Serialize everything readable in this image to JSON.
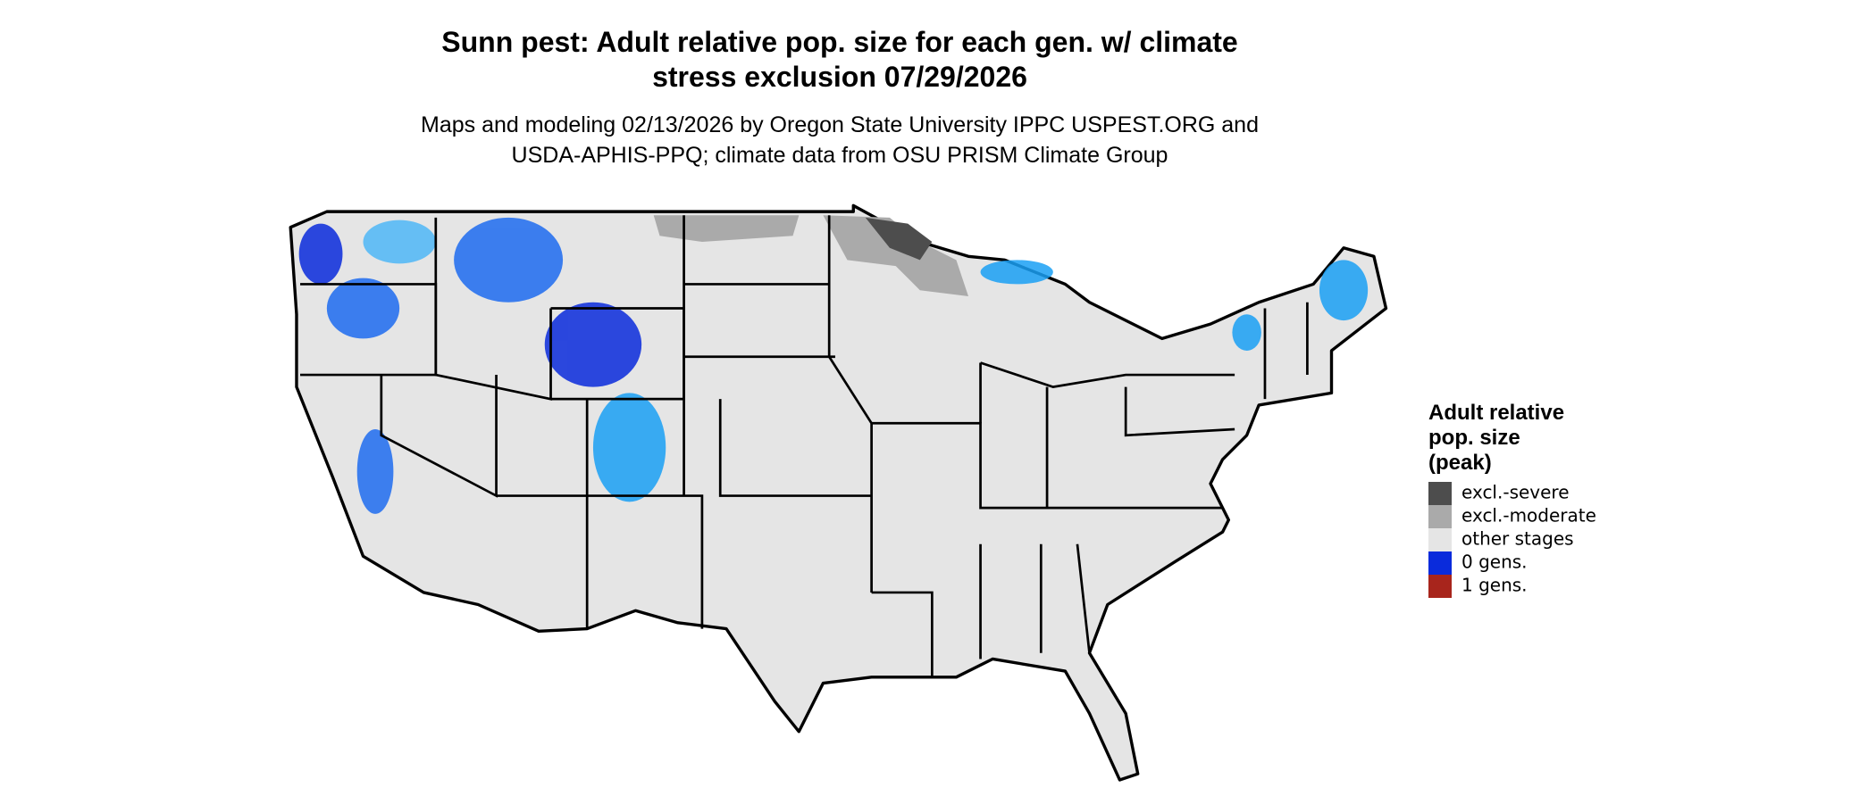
{
  "title": [
    "Sunn pest: Adult relative pop. size for each gen. w/ climate",
    "stress exclusion 07/29/2026"
  ],
  "subtitle": [
    "Maps and modeling 02/13/2026 by Oregon State University IPPC USPEST.ORG and",
    "USDA-APHIS-PPQ; climate data from OSU PRISM Climate Group"
  ],
  "legend": {
    "title": [
      "Adult relative",
      "pop. size",
      "(peak)"
    ],
    "items": [
      {
        "label": "excl.-severe",
        "color": "#4d4d4d"
      },
      {
        "label": "excl.-moderate",
        "color": "#aaaaaa"
      },
      {
        "label": "other stages",
        "color": "#e5e5e5"
      },
      {
        "label": "0 gens.",
        "color": "#0a2bdc"
      },
      {
        "label": "1 gens.",
        "color": "#a8251c"
      }
    ]
  }
}
